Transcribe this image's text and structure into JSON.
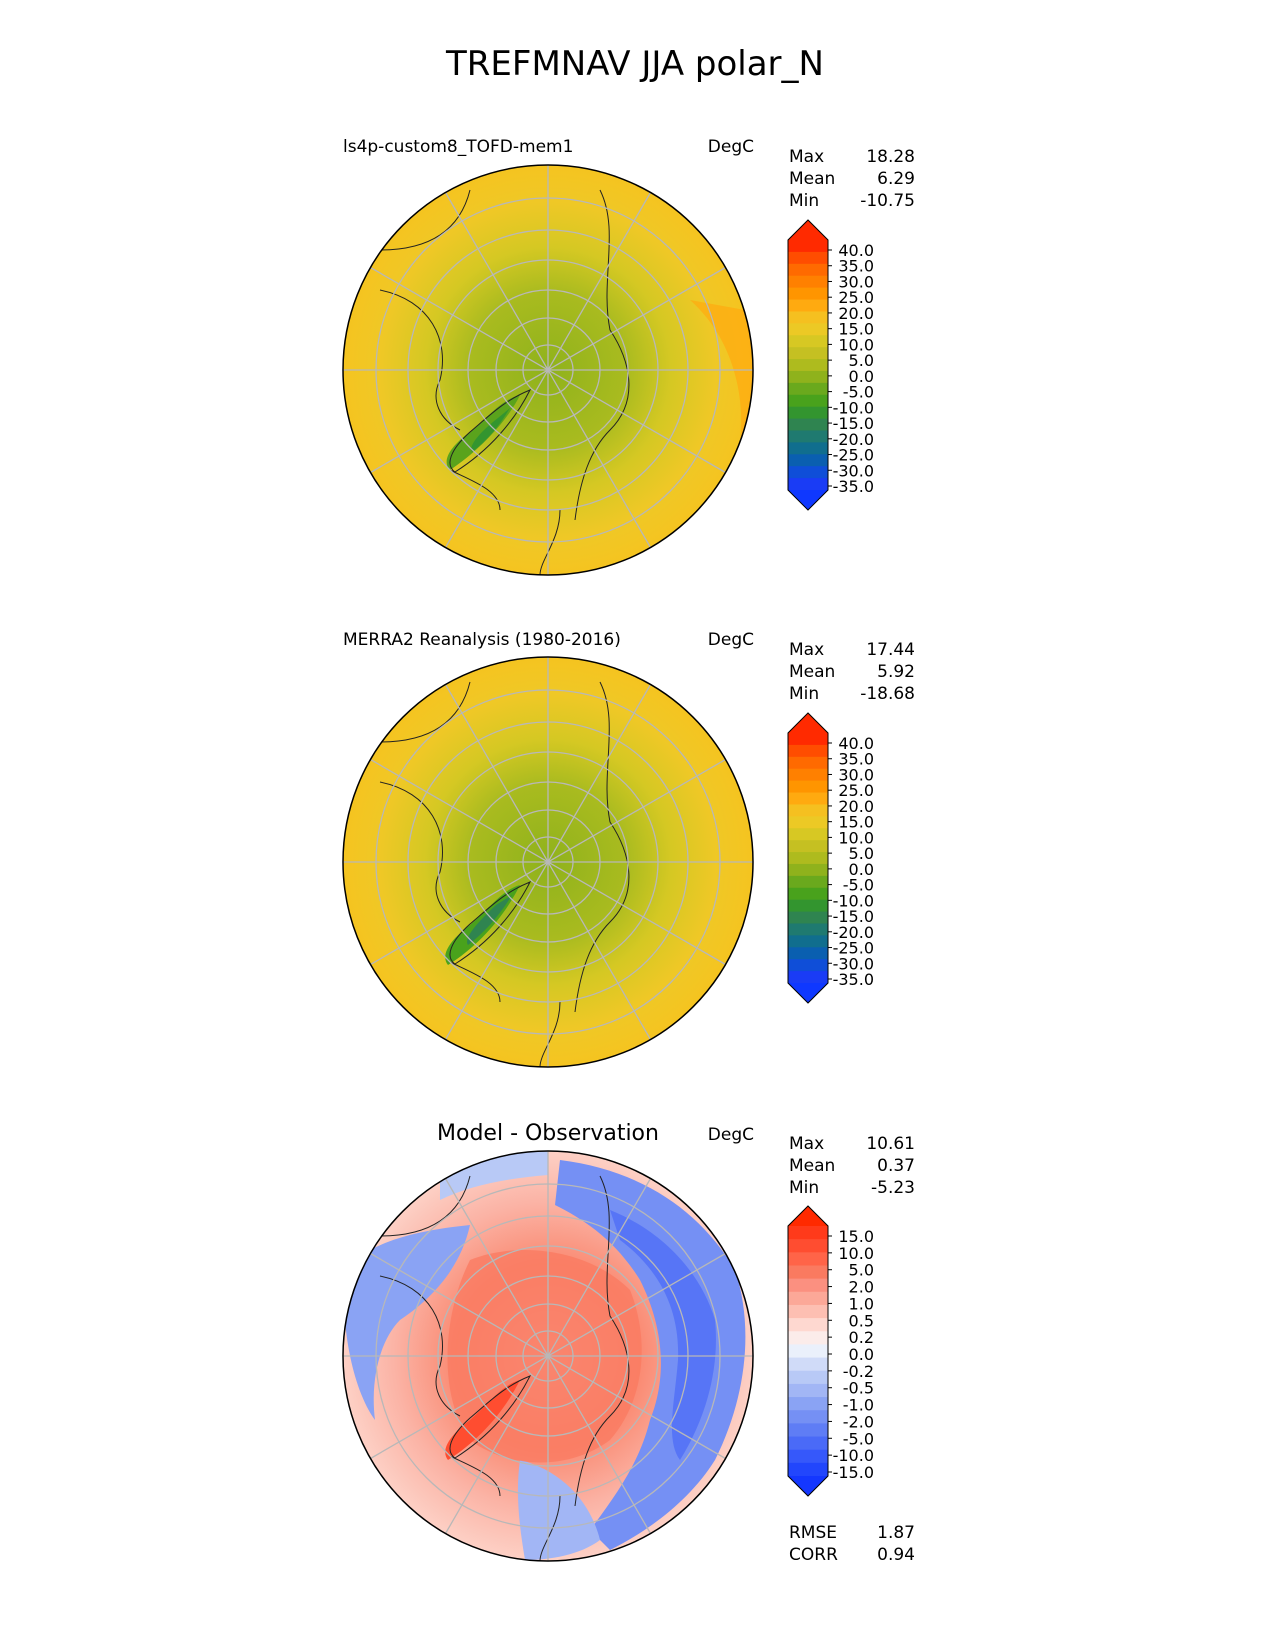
{
  "figure_title": "TREFMNAV JJA polar_N",
  "panels": [
    {
      "name": "model",
      "title": "ls4p-custom8_TOFD-mem1",
      "units": "DegC",
      "stats": [
        {
          "label": "Max",
          "value": "18.28"
        },
        {
          "label": "Mean",
          "value": "6.29"
        },
        {
          "label": "Min",
          "value": "-10.75"
        }
      ],
      "palette": "temp"
    },
    {
      "name": "obs",
      "title": "MERRA2 Reanalysis (1980-2016)",
      "units": "DegC",
      "stats": [
        {
          "label": "Max",
          "value": "17.44"
        },
        {
          "label": "Mean",
          "value": "5.92"
        },
        {
          "label": "Min",
          "value": "-18.68"
        }
      ],
      "palette": "temp"
    },
    {
      "name": "diff",
      "title": "Model - Observation",
      "units": "DegC",
      "stats": [
        {
          "label": "Max",
          "value": "10.61"
        },
        {
          "label": "Mean",
          "value": "0.37"
        },
        {
          "label": "Min",
          "value": "-5.23"
        }
      ],
      "palette": "diff",
      "extra_stats": [
        {
          "label": "RMSE",
          "value": "1.87"
        },
        {
          "label": "CORR",
          "value": "0.94"
        }
      ]
    }
  ],
  "colorbars": {
    "temp": {
      "ticks": [
        "40.0",
        "35.0",
        "30.0",
        "25.0",
        "20.0",
        "15.0",
        "10.0",
        "5.0",
        "0.0",
        "-5.0",
        "-10.0",
        "-15.0",
        "-20.0",
        "-25.0",
        "-30.0",
        "-35.0"
      ],
      "colors": [
        "#ff2a00",
        "#ff4d00",
        "#ff6a00",
        "#ff8000",
        "#ff9500",
        "#ffaa10",
        "#f5c020",
        "#ecc925",
        "#d7c823",
        "#c5c022",
        "#aebb1e",
        "#8fb21c",
        "#6aa91d",
        "#49a21c",
        "#33952f",
        "#2f8450",
        "#1f7a70",
        "#106e8e",
        "#0a5fb0",
        "#0f4ed8",
        "#1a3cf5"
      ],
      "extend_top": "#ff2a00",
      "extend_bottom": "#0f38ff"
    },
    "diff": {
      "ticks": [
        "15.0",
        "10.0",
        "5.0",
        "2.0",
        "1.0",
        "0.5",
        "0.2",
        "0.0",
        "-0.2",
        "-0.5",
        "-1.0",
        "-2.0",
        "-5.0",
        "-10.0",
        "-15.0"
      ],
      "colors": [
        "#ff3a1a",
        "#ff4d30",
        "#ff6448",
        "#fa7a60",
        "#fb9080",
        "#fca898",
        "#fdbfb2",
        "#fed8d0",
        "#fbecea",
        "#eaf0fb",
        "#d0dbf8",
        "#b8c9f6",
        "#a2b6f5",
        "#8aa3f4",
        "#7590f4",
        "#5f7df5",
        "#4a6af7",
        "#3658fa",
        "#2246fc"
      ],
      "extend_top": "#ff2a00",
      "extend_bottom": "#1437ff"
    }
  },
  "chart_data": [
    {
      "type": "heatmap",
      "projection": "north polar stereographic",
      "title": "ls4p-custom8_TOFD-mem1",
      "variable": "TREFMNAV",
      "season": "JJA",
      "units": "DegC",
      "max": 18.28,
      "mean": 6.29,
      "min": -10.75,
      "colorbar_range": [
        -35,
        40
      ]
    },
    {
      "type": "heatmap",
      "projection": "north polar stereographic",
      "title": "MERRA2 Reanalysis (1980-2016)",
      "variable": "TREFMNAV",
      "season": "JJA",
      "units": "DegC",
      "max": 17.44,
      "mean": 5.92,
      "min": -18.68,
      "colorbar_range": [
        -35,
        40
      ]
    },
    {
      "type": "heatmap",
      "projection": "north polar stereographic",
      "title": "Model - Observation",
      "units": "DegC",
      "max": 10.61,
      "mean": 0.37,
      "min": -5.23,
      "rmse": 1.87,
      "corr": 0.94,
      "colorbar_range": [
        -15,
        15
      ]
    }
  ]
}
